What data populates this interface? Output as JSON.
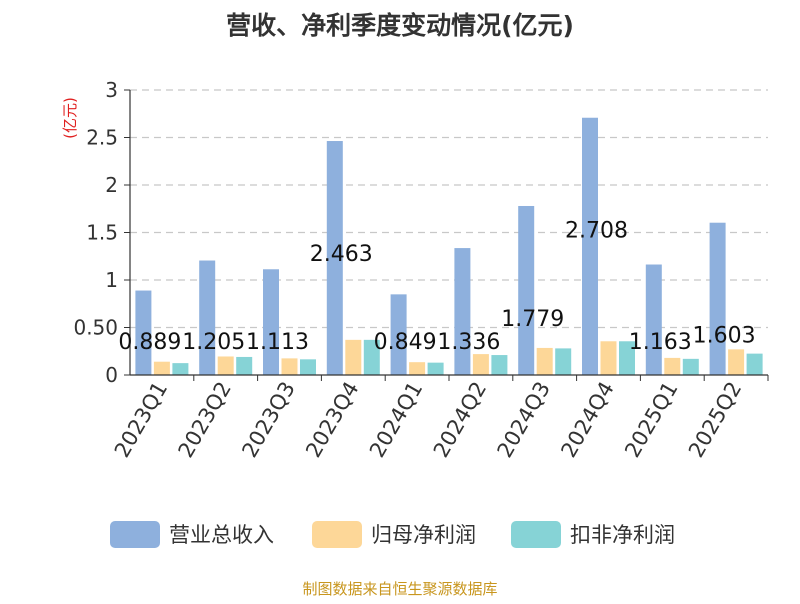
{
  "chart_data": {
    "type": "bar",
    "title": "营收、净利季度变动情况(亿元)",
    "ylabel": "(亿元)",
    "xlabel": "",
    "categories": [
      "2023Q1",
      "2023Q2",
      "2023Q3",
      "2023Q4",
      "2024Q1",
      "2024Q2",
      "2024Q3",
      "2024Q4",
      "2025Q1",
      "2025Q2"
    ],
    "series": [
      {
        "name": "营业总收入",
        "color": "#8eb0dd",
        "values": [
          0.889,
          1.205,
          1.113,
          2.463,
          0.849,
          1.336,
          1.779,
          2.708,
          1.163,
          1.603
        ],
        "labels": [
          "0.889",
          "1.205",
          "1.113",
          "2.463",
          "0.849",
          "1.336",
          "1.779",
          "2.708",
          "1.163",
          "1.603"
        ]
      },
      {
        "name": "归母净利润",
        "color": "#fdd798",
        "values": [
          0.14,
          0.195,
          0.175,
          0.37,
          0.135,
          0.22,
          0.285,
          0.355,
          0.18,
          0.27
        ]
      },
      {
        "name": "扣非净利润",
        "color": "#86d3d6",
        "values": [
          0.125,
          0.19,
          0.165,
          0.37,
          0.13,
          0.21,
          0.28,
          0.355,
          0.17,
          0.225
        ]
      }
    ],
    "ylim": [
      0,
      3
    ],
    "yticks": [
      "0",
      "0.50",
      "1",
      "1.5",
      "2",
      "2.5",
      "3"
    ],
    "ytick_values": [
      0,
      0.5,
      1,
      1.5,
      2,
      2.5,
      3
    ],
    "grid": true,
    "legend_position": "bottom"
  },
  "source": "制图数据来自恒生聚源数据库"
}
